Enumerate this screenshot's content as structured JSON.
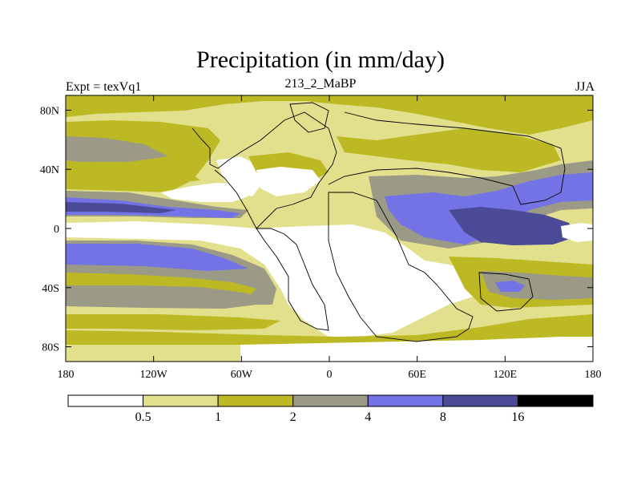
{
  "chart_data": {
    "type": "filled-contour-map",
    "title": "Precipitation (in mm/day)",
    "left_string": "Expt = texVq1",
    "center_string": "213_2_MaBP",
    "right_string": "JJA",
    "x_ticks": [
      {
        "value": -180,
        "label": "180"
      },
      {
        "value": -120,
        "label": "120W"
      },
      {
        "value": -60,
        "label": "60W"
      },
      {
        "value": 0,
        "label": "0"
      },
      {
        "value": 60,
        "label": "60E"
      },
      {
        "value": 120,
        "label": "120E"
      },
      {
        "value": 180,
        "label": "180"
      }
    ],
    "y_ticks": [
      {
        "value": 80,
        "label": "80N"
      },
      {
        "value": 40,
        "label": "40N"
      },
      {
        "value": 0,
        "label": "0"
      },
      {
        "value": -40,
        "label": "40S"
      },
      {
        "value": -80,
        "label": "80S"
      }
    ],
    "xlim": [
      -180,
      180
    ],
    "ylim": [
      -90,
      90
    ],
    "levels": [
      0.5,
      1,
      2,
      4,
      8,
      16
    ],
    "level_labels": [
      "0.5",
      "1",
      "2",
      "4",
      "8",
      "16"
    ],
    "colors": [
      "#ffffff",
      "#e2e08c",
      "#bdb924",
      "#9a9a87",
      "#7373e6",
      "#4a4a96",
      "#000000"
    ]
  }
}
